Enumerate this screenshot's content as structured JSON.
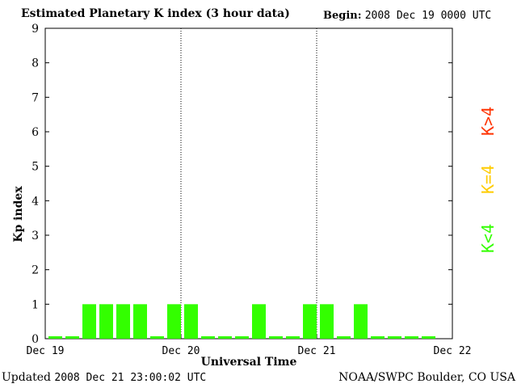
{
  "header": {
    "title": "Estimated Planetary K index (3 hour data)",
    "begin_label": "Begin:",
    "begin_value": "2008 Dec 19 0000 UTC"
  },
  "footer": {
    "updated_label": "Updated",
    "updated_value": "2008 Dec 21 23:00:02 UTC",
    "credit": "NOAA/SWPC Boulder, CO USA"
  },
  "legend": [
    {
      "label": "K<4",
      "color": "#33ff00"
    },
    {
      "label": "K=4",
      "color": "#ffcc00"
    },
    {
      "label": "K>4",
      "color": "#ff3300"
    }
  ],
  "chart_data": {
    "type": "bar",
    "title": "Estimated Planetary K index (3 hour data)",
    "xlabel": "Universal Time",
    "ylabel": "Kp index",
    "ylim": [
      0,
      9
    ],
    "yticks": [
      "0",
      "1",
      "2",
      "3",
      "4",
      "5",
      "6",
      "7",
      "8",
      "9"
    ],
    "xticks": [
      "Dec 19",
      "Dec 20",
      "Dec 21",
      "Dec 22"
    ],
    "interval_hours": 3,
    "day_dividers": [
      "Dec 20",
      "Dec 21"
    ],
    "bar_color": "#33ff00",
    "series": [
      {
        "values": [
          0,
          0,
          1,
          1,
          1,
          1,
          0,
          1,
          1,
          0,
          0,
          0,
          1,
          0,
          0,
          1,
          1,
          0,
          1,
          0,
          0,
          0,
          0
        ]
      }
    ]
  }
}
